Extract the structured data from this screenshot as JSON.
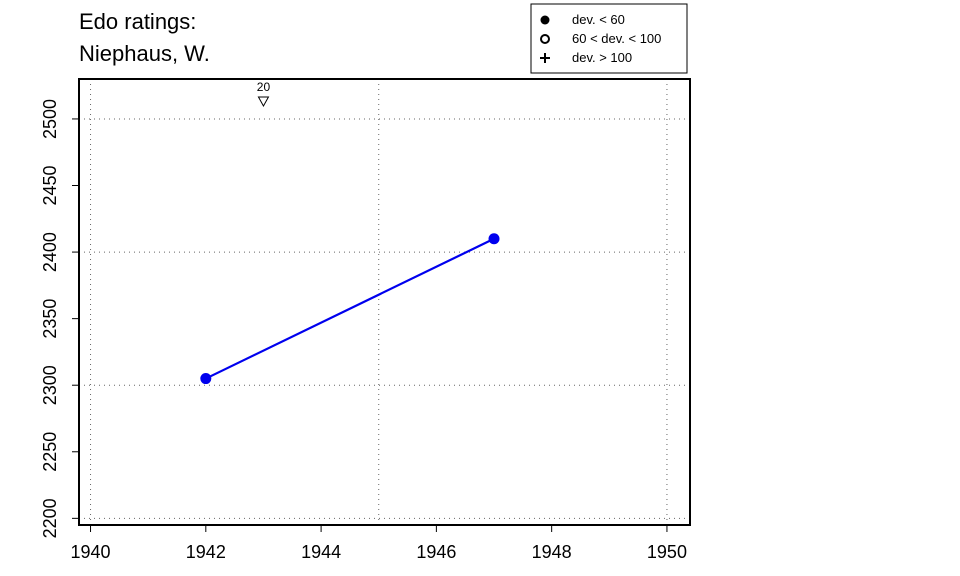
{
  "chart_data": {
    "type": "line",
    "title_lines": [
      "Edo ratings:",
      "Niephaus, W."
    ],
    "xlabel": "",
    "ylabel": "",
    "xlim": [
      1939.8,
      1950.4
    ],
    "ylim": [
      2195,
      2530
    ],
    "x_ticks": [
      1940,
      1942,
      1944,
      1946,
      1948,
      1950
    ],
    "y_ticks": [
      2200,
      2250,
      2300,
      2350,
      2400,
      2450,
      2500
    ],
    "grid_x": [
      1940,
      1945,
      1950
    ],
    "grid_y": [
      2200,
      2300,
      2400,
      2500
    ],
    "series": [
      {
        "color": "#0000ee",
        "points": [
          {
            "x": 1942,
            "y": 2305
          },
          {
            "x": 1947,
            "y": 2410
          }
        ]
      }
    ],
    "annotations": [
      {
        "x": 1943,
        "label": "20",
        "marker": "down-triangle"
      }
    ],
    "legend": {
      "position": "top-right",
      "entries": [
        {
          "symbol": "filled-circle",
          "label": "dev. < 60"
        },
        {
          "symbol": "open-circle",
          "label": "60 < dev. < 100"
        },
        {
          "symbol": "plus",
          "label": "dev. > 100"
        }
      ]
    }
  }
}
